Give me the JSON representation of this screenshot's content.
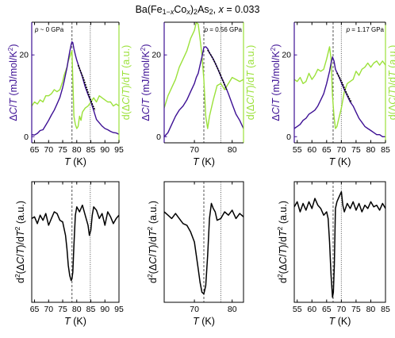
{
  "figure": {
    "title": {
      "lead": "Ba(Fe",
      "sub_1": "1−",
      "sub_x": "x",
      "mid": "Co",
      "sub_x2": "x",
      "close": ")",
      "sub_2": "2",
      "as": "As",
      "sub_2b": "2",
      "sep": ", ",
      "x_var": "x",
      "x_val": " = 0.033"
    },
    "labels": {
      "x_var": "T",
      "x_unit": " (K)",
      "left_top": {
        "delta": "Δ",
        "cvar": "C",
        "slash": "/",
        "tvar": "T",
        "unit": " (mJ/mol/K",
        "exp": "2",
        "close": ")"
      },
      "right_top": {
        "d": "d(",
        "delta": "Δ",
        "cvar": "C",
        "slash": "/",
        "tvar": "T",
        "close": ")/d",
        "tvar2": "T",
        "unit": " (a.u.)"
      },
      "left_bottom": {
        "d": "d",
        "exp1": "2",
        "open": "(",
        "delta": "Δ",
        "cvar": "C",
        "slash": "/",
        "tvar": "T",
        "close": ")/d",
        "tvar2": "T",
        "exp2": "2",
        "unit": " (a.u.)"
      }
    },
    "colors": {
      "heat_capacity": "#3d1094",
      "derivative": "#9be13a",
      "second_derivative": "#000000",
      "fit": "#000000",
      "dashed_line": "#555555",
      "dotted_line": "#555555"
    }
  },
  "chart_data": [
    {
      "type": "line",
      "panel": "top-left",
      "annotation": {
        "var": "p",
        "text": " ~ 0 GPa"
      },
      "xlim": [
        64,
        95
      ],
      "xticks": [
        65,
        70,
        75,
        80,
        85,
        90,
        95
      ],
      "ylim": [
        -1.5,
        28
      ],
      "yticks": [
        0,
        20
      ],
      "dashed_x": 78.3,
      "dotted_x": 84.8,
      "series": [
        {
          "role": "heat_capacity",
          "x": [
            64,
            65,
            66,
            67,
            68,
            69,
            70,
            71,
            72,
            73,
            74,
            75,
            75.5,
            76,
            76.5,
            77,
            77.5,
            78,
            78.3,
            78.6,
            79,
            79.5,
            80,
            81,
            82,
            83,
            84,
            85,
            86,
            87,
            88,
            89,
            90,
            91,
            92,
            93,
            94,
            95
          ],
          "y": [
            0.5,
            0.4,
            0.8,
            1.5,
            1.7,
            2.8,
            4,
            5.3,
            6.5,
            8,
            9.6,
            12,
            13.5,
            15.2,
            16.8,
            18.8,
            20.8,
            22.5,
            23.2,
            23,
            21.5,
            20,
            18.7,
            16.6,
            14.6,
            12.2,
            10.3,
            8.6,
            6.4,
            4.2,
            3.4,
            2.6,
            2,
            1.7,
            1.3,
            1,
            0.9,
            0.6
          ]
        },
        {
          "role": "derivative",
          "x": [
            64,
            65,
            66,
            67,
            68,
            69,
            70,
            71,
            72,
            73,
            74,
            75,
            75.5,
            76,
            76.5,
            77,
            77.5,
            78,
            78.3,
            78.6,
            79,
            79.5,
            80,
            80.5,
            81,
            81.5,
            82,
            83,
            84,
            85,
            86,
            87,
            88,
            89,
            90,
            91,
            92,
            93,
            94,
            95
          ],
          "y": [
            7.5,
            8.5,
            8,
            9,
            8.5,
            10,
            10,
            10.5,
            11.5,
            11,
            11.5,
            13.5,
            15,
            16,
            17,
            18.5,
            19.5,
            20.5,
            21,
            14,
            5,
            3,
            2,
            2.5,
            5,
            4,
            6,
            7,
            7.5,
            8.5,
            9.5,
            8.5,
            10,
            9.5,
            9,
            8.5,
            8.5,
            7.5,
            8,
            7.5
          ]
        },
        {
          "role": "fit",
          "x": [
            80.5,
            81.5,
            82.5,
            83.5,
            84.5,
            85.5,
            86.5
          ],
          "y": [
            17.5,
            15.8,
            14.0,
            11.9,
            9.8,
            8.0,
            6.4
          ]
        }
      ]
    },
    {
      "type": "line",
      "panel": "top-middle",
      "annotation": {
        "var": "p",
        "text": " = 0.56 GPa"
      },
      "xlim": [
        62,
        83
      ],
      "xticks": [
        70,
        80
      ],
      "ylim": [
        -1.5,
        28
      ],
      "yticks": [
        0,
        20
      ],
      "dashed_x": 72.5,
      "dotted_x": 77,
      "series": [
        {
          "role": "heat_capacity",
          "x": [
            62,
            63,
            64,
            65,
            66,
            67,
            68,
            69,
            70,
            70.5,
            71,
            71.5,
            72,
            72.5,
            73,
            73.5,
            74,
            75,
            76,
            77,
            78,
            79,
            80,
            81,
            82,
            83
          ],
          "y": [
            0,
            1,
            3,
            5,
            6.5,
            7.5,
            9,
            11,
            13,
            14.5,
            15.5,
            17.5,
            19.5,
            21.8,
            22,
            21.5,
            20.5,
            19,
            17,
            14.8,
            12.8,
            10.5,
            8,
            5.5,
            4,
            2
          ]
        },
        {
          "role": "derivative",
          "x": [
            62,
            63,
            64,
            65,
            66,
            67,
            68,
            69,
            70,
            70.5,
            71,
            71.5,
            72,
            72.5,
            73,
            73.5,
            74,
            75,
            76,
            77,
            78,
            79,
            80,
            81,
            82,
            83
          ],
          "y": [
            7,
            10,
            12,
            14,
            17,
            19,
            21,
            24,
            26,
            28,
            27.5,
            24,
            20,
            14,
            5,
            2,
            5,
            9,
            12.5,
            13,
            11.5,
            13,
            14.5,
            14,
            13.5,
            14
          ]
        },
        {
          "role": "fit",
          "x": [
            73.5,
            74.5,
            75.5,
            76.5,
            77.5,
            78.5
          ],
          "y": [
            21.2,
            19.8,
            18.0,
            16.0,
            13.8,
            11.5
          ]
        }
      ]
    },
    {
      "type": "line",
      "panel": "top-right",
      "annotation": {
        "var": "p",
        "text": " = 1.17 GPa"
      },
      "xlim": [
        54,
        85
      ],
      "xticks": [
        55,
        60,
        65,
        70,
        75,
        80,
        85
      ],
      "ylim": [
        -1.5,
        28
      ],
      "yticks": [
        0,
        20
      ],
      "dashed_x": 67.2,
      "dotted_x": 70,
      "series": [
        {
          "role": "heat_capacity",
          "x": [
            54,
            55,
            56,
            57,
            58,
            59,
            60,
            61,
            62,
            63,
            64,
            65,
            66,
            66.5,
            67,
            67.5,
            68,
            69,
            70,
            71,
            72,
            73,
            74,
            75,
            76,
            77,
            78,
            79,
            80,
            81,
            82,
            83,
            84,
            85
          ],
          "y": [
            2,
            2.5,
            3,
            4,
            4.5,
            5.5,
            6,
            6.5,
            7.5,
            9,
            10.5,
            13,
            16,
            18,
            19.5,
            18.5,
            16.5,
            15,
            13.2,
            11.5,
            10,
            8.5,
            7.5,
            6,
            4.5,
            3.5,
            2.5,
            2,
            1.5,
            1,
            0.5,
            0.5,
            0,
            0
          ]
        },
        {
          "role": "derivative",
          "x": [
            54,
            55,
            56,
            57,
            58,
            59,
            60,
            61,
            62,
            63,
            64,
            65,
            66,
            66.5,
            67,
            67.5,
            68,
            68.5,
            69,
            70,
            71,
            72,
            73,
            74,
            75,
            76,
            77,
            78,
            79,
            80,
            81,
            82,
            83,
            84,
            85
          ],
          "y": [
            14,
            13.5,
            14.5,
            13,
            13.5,
            15.5,
            14,
            15,
            16.5,
            16,
            16.5,
            19,
            22,
            19,
            10,
            5,
            2,
            2.5,
            4,
            7,
            11,
            13,
            13.5,
            14,
            16,
            15,
            16.5,
            17,
            18,
            17,
            18,
            18.5,
            17.5,
            18.5,
            17.5
          ]
        },
        {
          "role": "fit",
          "x": [
            68.5,
            69.5,
            70.5,
            71.5,
            72.5,
            73.5
          ],
          "y": [
            15.6,
            14.3,
            12.8,
            11.1,
            9.6,
            8.3
          ]
        }
      ]
    },
    {
      "type": "line",
      "panel": "bottom-left",
      "xlim": [
        64,
        95
      ],
      "xticks": [
        65,
        70,
        75,
        80,
        85,
        90,
        95
      ],
      "ylim": [
        -2.4,
        1.2
      ],
      "dashed_x": 78.3,
      "dotted_x": 84.8,
      "series": [
        {
          "role": "second_derivative",
          "x": [
            64,
            65,
            66,
            67,
            68,
            69,
            70,
            71,
            72,
            73,
            74,
            75,
            75.5,
            76,
            76.5,
            77,
            77.5,
            78,
            78.3,
            78.6,
            79,
            79.5,
            80,
            81,
            82,
            83,
            84,
            84.5,
            85,
            85.5,
            86,
            87,
            88,
            89,
            90,
            91,
            92,
            93,
            94,
            95
          ],
          "y": [
            0.1,
            0.15,
            -0.05,
            0.2,
            0.05,
            0.25,
            -0.1,
            0.1,
            0.3,
            0.25,
            0.05,
            0.0,
            -0.2,
            -0.4,
            -0.8,
            -1.3,
            -1.6,
            -1.75,
            -1.7,
            -1.5,
            -0.7,
            0.2,
            0.45,
            0.3,
            0.5,
            0.2,
            -0.1,
            -0.4,
            -0.25,
            0.2,
            0.45,
            0.35,
            0.1,
            0.25,
            -0.1,
            0.3,
            0.15,
            -0.05,
            0.1,
            0.2
          ]
        }
      ]
    },
    {
      "type": "line",
      "panel": "bottom-middle",
      "xlim": [
        62,
        83
      ],
      "xticks": [
        70,
        80
      ],
      "ylim": [
        -2.4,
        1.2
      ],
      "dashed_x": 72.5,
      "dotted_x": 77,
      "series": [
        {
          "role": "second_derivative",
          "x": [
            62,
            63,
            64,
            65,
            66,
            67,
            68,
            69,
            70,
            70.5,
            71,
            71.5,
            72,
            72.5,
            73,
            73.5,
            74,
            74.5,
            75,
            75.5,
            76,
            77,
            78,
            79,
            80,
            81,
            82,
            83
          ],
          "y": [
            0.3,
            0.2,
            0.1,
            0.25,
            0.1,
            -0.05,
            -0.1,
            -0.3,
            -0.6,
            -1.0,
            -1.4,
            -1.8,
            -2.1,
            -2.15,
            -1.9,
            -1.0,
            0.1,
            0.55,
            0.4,
            0.3,
            0.05,
            0.1,
            0.3,
            0.2,
            0.35,
            0.1,
            0.25,
            0.15
          ]
        }
      ]
    },
    {
      "type": "line",
      "panel": "bottom-right",
      "xlim": [
        54,
        85
      ],
      "xticks": [
        55,
        60,
        65,
        70,
        75,
        80,
        85
      ],
      "ylim": [
        -2.4,
        1.2
      ],
      "dashed_x": 67.2,
      "dotted_x": 70,
      "series": [
        {
          "role": "second_derivative",
          "x": [
            54,
            55,
            56,
            57,
            58,
            59,
            60,
            61,
            62,
            63,
            64,
            65,
            65.5,
            66,
            66.5,
            67,
            67.3,
            67.6,
            68,
            68.5,
            69,
            70,
            70.5,
            71,
            72,
            73,
            74,
            75,
            76,
            77,
            78,
            79,
            80,
            81,
            82,
            83,
            84,
            85
          ],
          "y": [
            0.45,
            0.6,
            0.3,
            0.55,
            0.35,
            0.6,
            0.4,
            0.7,
            0.5,
            0.4,
            0.2,
            0.3,
            0.1,
            -0.6,
            -1.6,
            -2.25,
            -2.1,
            -1.3,
            0.4,
            0.6,
            0.7,
            0.9,
            0.5,
            0.3,
            0.55,
            0.4,
            0.6,
            0.35,
            0.55,
            0.3,
            0.5,
            0.4,
            0.6,
            0.45,
            0.5,
            0.35,
            0.55,
            0.4
          ]
        }
      ]
    }
  ]
}
